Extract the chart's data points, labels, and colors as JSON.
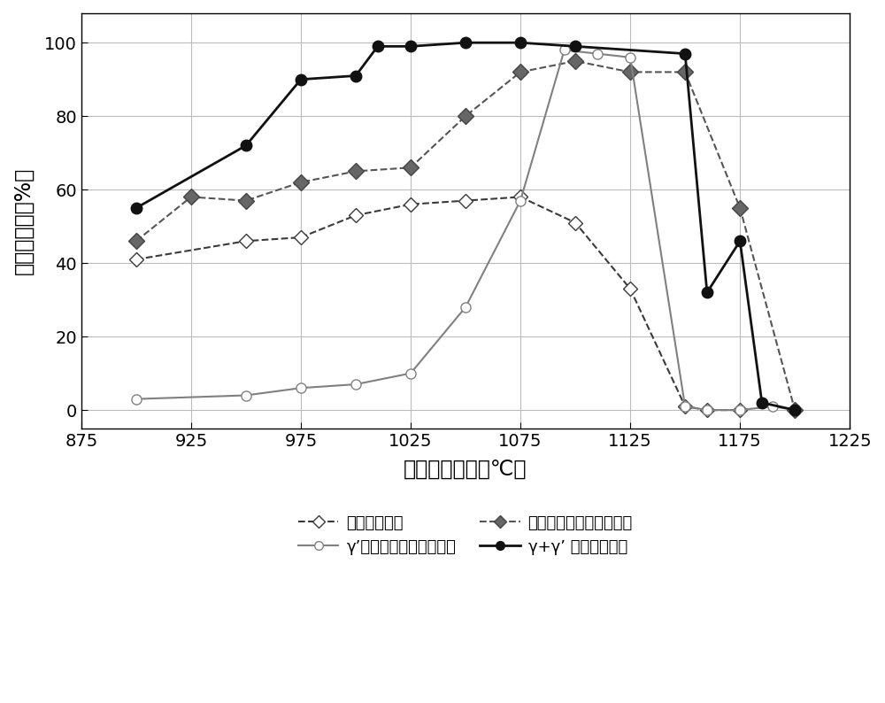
{
  "series1": {
    "name": "原始铸态组织",
    "x": [
      900,
      950,
      975,
      1000,
      1025,
      1050,
      1075,
      1100,
      1125,
      1150,
      1160,
      1175
    ],
    "y": [
      41,
      46,
      47,
      53,
      56,
      57,
      58,
      51,
      33,
      1,
      0,
      0
    ],
    "color": "#3a3a3a",
    "linestyle": "--",
    "marker": "D",
    "markerfacecolor": "white",
    "markeredgecolor": "#3a3a3a",
    "markersize": 8,
    "linewidth": 1.5
  },
  "series2": {
    "name": "经均匀化处理的铸态组织",
    "x": [
      900,
      925,
      950,
      975,
      1000,
      1025,
      1050,
      1075,
      1100,
      1125,
      1150,
      1175,
      1200
    ],
    "y": [
      46,
      58,
      57,
      62,
      65,
      66,
      80,
      92,
      95,
      92,
      92,
      55,
      0
    ],
    "color": "#555555",
    "linestyle": "--",
    "marker": "D",
    "markerfacecolor": "#666666",
    "markeredgecolor": "#444444",
    "markersize": 9,
    "linewidth": 1.5
  },
  "series3": {
    "name": "γ’相弥散分布的粗晶组织",
    "x": [
      900,
      950,
      975,
      1000,
      1025,
      1050,
      1075,
      1095,
      1110,
      1125,
      1150,
      1160,
      1175,
      1190,
      1200
    ],
    "y": [
      3,
      4,
      6,
      7,
      10,
      28,
      57,
      98,
      97,
      96,
      1,
      0,
      0,
      1,
      0
    ],
    "color": "#808080",
    "linestyle": "-",
    "marker": "o",
    "markerfacecolor": "white",
    "markeredgecolor": "#808080",
    "markersize": 8,
    "linewidth": 1.5
  },
  "series4": {
    "name": "γ+γ’ 双态细晶组织",
    "x": [
      900,
      950,
      975,
      1000,
      1010,
      1025,
      1050,
      1075,
      1100,
      1150,
      1160,
      1175,
      1185,
      1200
    ],
    "y": [
      55,
      72,
      90,
      91,
      99,
      99,
      100,
      100,
      99,
      97,
      32,
      46,
      2,
      0
    ],
    "color": "#111111",
    "linestyle": "-",
    "marker": "o",
    "markerfacecolor": "#111111",
    "markeredgecolor": "#111111",
    "markersize": 9,
    "linewidth": 2.0
  },
  "xlim": [
    875,
    1225
  ],
  "ylim": [
    -5,
    108
  ],
  "xticks": [
    875,
    925,
    975,
    1025,
    1075,
    1125,
    1175,
    1225
  ],
  "yticks": [
    0,
    20,
    40,
    60,
    80,
    100
  ],
  "xlabel": "塑性变形温度（℃）",
  "ylabel": "断面收缩率（%）",
  "xlabel_fontsize": 17,
  "ylabel_fontsize": 17,
  "tick_fontsize": 14,
  "legend_fontsize": 13,
  "background_color": "#ffffff",
  "grid_color": "#bbbbbb",
  "legend_row1": [
    "原始铸态组织",
    "γ’相弥散分布的粗晶组织"
  ],
  "legend_row2": [
    "经均匀化处理的铸态组织",
    "γ+γ’ 双态细晶组织"
  ]
}
